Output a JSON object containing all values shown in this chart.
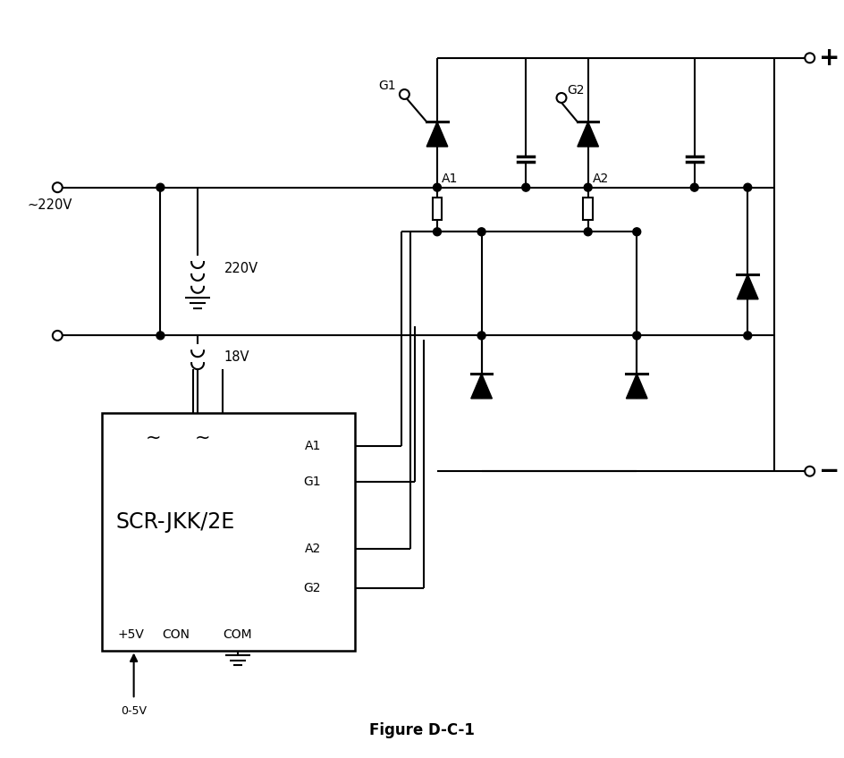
{
  "fig_width": 9.45,
  "fig_height": 8.48,
  "bg": "#ffffff",
  "lc": "#000000",
  "lw": 1.5,
  "title": "Figure D-C-1",
  "v220": "220V",
  "v18": "18V",
  "v220ac": "~220V",
  "label_scr": "SCR-JKK/2E",
  "label_plus5v": "+5V",
  "label_con": "CON",
  "label_com": "COM",
  "label_05v": "0-5V",
  "label_A1": "A1",
  "label_G1": "G1",
  "label_A2": "A2",
  "label_G2": "G2"
}
